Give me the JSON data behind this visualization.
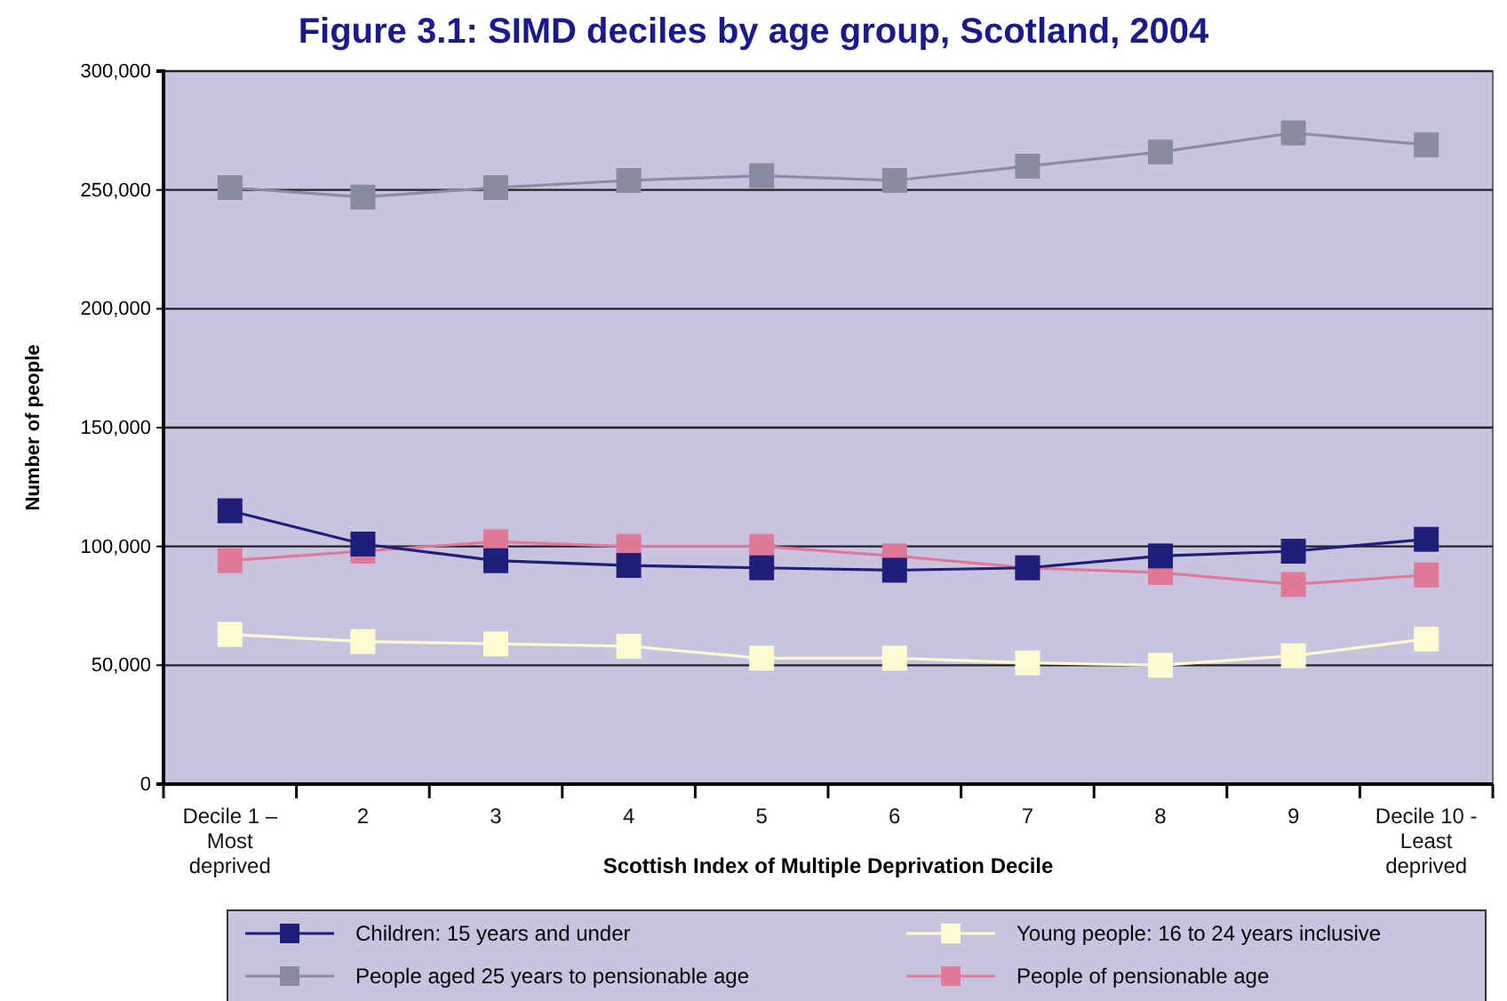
{
  "chart_data": {
    "type": "line",
    "title": "Figure 3.1: SIMD deciles by age group, Scotland, 2004",
    "xlabel": "Scottish Index of Multiple Deprivation Decile",
    "ylabel": "Number of people",
    "categories": [
      "Decile 1 –\nMost\ndeprived",
      "2",
      "3",
      "4",
      "5",
      "6",
      "7",
      "8",
      "9",
      "Decile 10 -\nLeast\ndeprived"
    ],
    "series": [
      {
        "name": "Children: 15 years and under",
        "color": "#1f1f7a",
        "values": [
          115000,
          101000,
          94000,
          92000,
          91000,
          90000,
          91000,
          96000,
          98000,
          103000
        ]
      },
      {
        "name": "Young people: 16 to 24 years inclusive",
        "color": "#fffad0",
        "values": [
          63000,
          60000,
          59000,
          58000,
          53000,
          53000,
          51000,
          50000,
          54000,
          61000
        ]
      },
      {
        "name": "People aged 25 years to pensionable age",
        "color": "#8a8aa0",
        "values": [
          251000,
          247000,
          251000,
          254000,
          256000,
          254000,
          260000,
          266000,
          274000,
          269000
        ]
      },
      {
        "name": "People of pensionable age",
        "color": "#e07898",
        "values": [
          94000,
          98000,
          102000,
          100000,
          100000,
          96000,
          91000,
          89000,
          84000,
          88000
        ]
      }
    ],
    "ylim": [
      0,
      300000
    ],
    "yticks": [
      {
        "value": 0,
        "label": "0"
      },
      {
        "value": 50000,
        "label": "50,000"
      },
      {
        "value": 100000,
        "label": "100,000"
      },
      {
        "value": 150000,
        "label": "150,000"
      },
      {
        "value": 200000,
        "label": "200,000"
      },
      {
        "value": 250000,
        "label": "250,000"
      },
      {
        "value": 300000,
        "label": "300,000"
      }
    ],
    "grid": "y",
    "legend": "bottom",
    "marker": "square",
    "line_style": "solid"
  }
}
